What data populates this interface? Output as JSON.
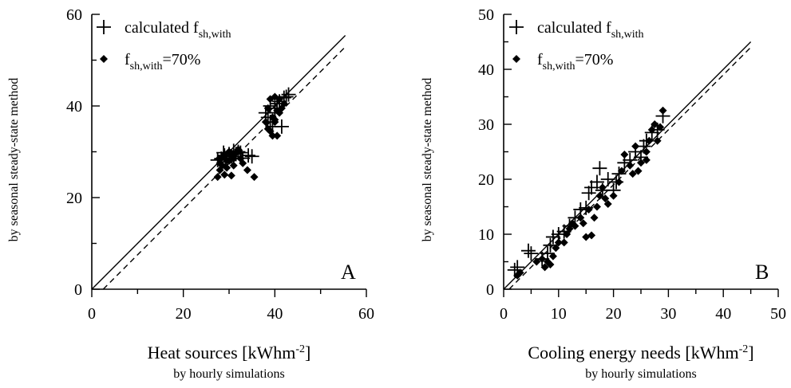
{
  "chart_data": [
    {
      "type": "scatter",
      "panel_label": "A",
      "xlabel": "Heat sources [kWhm",
      "xlabel_sup": "-2",
      "xlabel_close": "]",
      "xlabel_sub": "by hourly simulations",
      "ylabel": "by seasonal steady-state method",
      "xlim": [
        0,
        60
      ],
      "ylim": [
        0,
        60
      ],
      "xticks": [
        0,
        20,
        40,
        60
      ],
      "yticks": [
        0,
        20,
        40,
        60
      ],
      "grid": false,
      "legend_position": "top-left",
      "legend": {
        "calc_base": "calculated f",
        "calc_sub": "sh,with",
        "seventy_base": "f",
        "seventy_sub": "sh,with",
        "seventy_suffix": "=70%"
      },
      "lines": [
        {
          "style": "solid",
          "x": [
            0,
            55.4
          ],
          "y": [
            0,
            55.4
          ]
        },
        {
          "style": "dashed",
          "x": [
            2.5,
            55.4
          ],
          "y": [
            0,
            52.9
          ]
        }
      ],
      "series": [
        {
          "marker": "plus",
          "points": [
            [
              27.5,
              28.2
            ],
            [
              28.3,
              28.5
            ],
            [
              29,
              29.2
            ],
            [
              29.5,
              28.4
            ],
            [
              30,
              29.5
            ],
            [
              30.5,
              29
            ],
            [
              31,
              30.2
            ],
            [
              31.5,
              29.5
            ],
            [
              32,
              30
            ],
            [
              32.5,
              29.8
            ],
            [
              33,
              28.6
            ],
            [
              29.2,
              27.8
            ],
            [
              28.8,
              29.8
            ],
            [
              34.2,
              29.2
            ],
            [
              35,
              29
            ],
            [
              38,
              38.5
            ],
            [
              38.5,
              37.5
            ],
            [
              39,
              36.5
            ],
            [
              39.5,
              35.5
            ],
            [
              40,
              39.5
            ],
            [
              40.5,
              40.5
            ],
            [
              41,
              41
            ],
            [
              41.5,
              35.5
            ],
            [
              42,
              41.8
            ],
            [
              42.5,
              42
            ],
            [
              43,
              42.5
            ],
            [
              40,
              38.5
            ],
            [
              39,
              40
            ]
          ]
        },
        {
          "marker": "diamond",
          "points": [
            [
              27.5,
              24.5
            ],
            [
              28,
              26
            ],
            [
              28.5,
              27
            ],
            [
              29,
              25
            ],
            [
              29.5,
              26.5
            ],
            [
              30,
              28
            ],
            [
              30.5,
              24.8
            ],
            [
              31,
              27
            ],
            [
              28.5,
              28.8
            ],
            [
              29,
              29.5
            ],
            [
              30,
              30
            ],
            [
              31.5,
              29.8
            ],
            [
              32,
              30.5
            ],
            [
              32.5,
              28.5
            ],
            [
              33,
              27.5
            ],
            [
              34,
              26
            ],
            [
              35.5,
              24.5
            ],
            [
              29.5,
              28.2
            ],
            [
              30.5,
              29.2
            ],
            [
              31,
              28.5
            ],
            [
              28,
              27.5
            ],
            [
              27.8,
              28.5
            ],
            [
              38,
              36.5
            ],
            [
              38.5,
              35
            ],
            [
              39,
              34.5
            ],
            [
              39.5,
              33.5
            ],
            [
              40,
              37
            ],
            [
              40.5,
              33.5
            ],
            [
              41,
              38.5
            ],
            [
              39,
              41.5
            ],
            [
              40,
              42
            ],
            [
              41,
              41.5
            ],
            [
              42,
              40.5
            ],
            [
              41.5,
              39.5
            ],
            [
              38.5,
              39.5
            ],
            [
              40.5,
              39
            ],
            [
              39.5,
              37.5
            ],
            [
              40,
              36.5
            ]
          ]
        }
      ]
    },
    {
      "type": "scatter",
      "panel_label": "B",
      "xlabel": "Cooling energy needs [kWhm",
      "xlabel_sup": "-2",
      "xlabel_close": "]",
      "xlabel_sub": "by hourly simulations",
      "ylabel": "by seasonal steady-state method",
      "xlim": [
        0,
        50
      ],
      "ylim": [
        0,
        50
      ],
      "xticks": [
        0,
        10,
        20,
        30,
        40,
        50
      ],
      "yticks": [
        0,
        10,
        20,
        30,
        40,
        50
      ],
      "grid": false,
      "legend_position": "top-left",
      "legend": {
        "calc_base": "calculated f",
        "calc_sub": "sh,with",
        "seventy_base": "f",
        "seventy_sub": "sh,with",
        "seventy_suffix": "=70%"
      },
      "lines": [
        {
          "style": "solid",
          "x": [
            0,
            45
          ],
          "y": [
            0,
            45
          ]
        },
        {
          "style": "dashed",
          "x": [
            1,
            45.3
          ],
          "y": [
            0,
            44.3
          ]
        }
      ],
      "series": [
        {
          "marker": "plus",
          "points": [
            [
              2,
              3.5
            ],
            [
              2.5,
              4
            ],
            [
              4.5,
              7
            ],
            [
              5,
              6.5
            ],
            [
              7,
              5.5
            ],
            [
              8,
              6.5
            ],
            [
              8.5,
              8
            ],
            [
              9,
              9.5
            ],
            [
              10,
              10
            ],
            [
              11,
              10.5
            ],
            [
              12,
              11.5
            ],
            [
              13,
              13
            ],
            [
              14,
              14.5
            ],
            [
              15,
              14.8
            ],
            [
              15.5,
              17.5
            ],
            [
              16,
              18.5
            ],
            [
              17,
              19.5
            ],
            [
              17.5,
              22
            ],
            [
              18,
              18
            ],
            [
              19,
              20
            ],
            [
              20,
              18
            ],
            [
              20.5,
              19.5
            ],
            [
              21,
              21
            ],
            [
              22,
              23
            ],
            [
              23,
              23.5
            ],
            [
              24,
              25
            ],
            [
              25,
              24
            ],
            [
              26,
              27
            ],
            [
              27,
              28.5
            ],
            [
              28,
              29
            ],
            [
              29,
              31.5
            ],
            [
              25.5,
              26
            ]
          ]
        },
        {
          "marker": "diamond",
          "points": [
            [
              2.5,
              2.5
            ],
            [
              3,
              3
            ],
            [
              6,
              5
            ],
            [
              7,
              5.5
            ],
            [
              7.5,
              4
            ],
            [
              8,
              5
            ],
            [
              8.5,
              4.5
            ],
            [
              9,
              6
            ],
            [
              9.5,
              7.5
            ],
            [
              10,
              8.5
            ],
            [
              11,
              8.5
            ],
            [
              11.5,
              10
            ],
            [
              12,
              11
            ],
            [
              12.5,
              12
            ],
            [
              13,
              11.5
            ],
            [
              14,
              13
            ],
            [
              14.5,
              12
            ],
            [
              15,
              9.5
            ],
            [
              15.5,
              14.5
            ],
            [
              16,
              9.8
            ],
            [
              16.5,
              13
            ],
            [
              17,
              15
            ],
            [
              17.5,
              17
            ],
            [
              18,
              18.5
            ],
            [
              18.5,
              16.5
            ],
            [
              19,
              15.5
            ],
            [
              20,
              17
            ],
            [
              21,
              19.5
            ],
            [
              21.5,
              21.5
            ],
            [
              22,
              24.5
            ],
            [
              23,
              22.5
            ],
            [
              23.5,
              21
            ],
            [
              24,
              26
            ],
            [
              24.5,
              21.5
            ],
            [
              25,
              23
            ],
            [
              26,
              25
            ],
            [
              26.5,
              27
            ],
            [
              27,
              29
            ],
            [
              27.5,
              30
            ],
            [
              28,
              27
            ],
            [
              28.5,
              29.5
            ],
            [
              29,
              32.5
            ],
            [
              26,
              23.5
            ]
          ]
        }
      ]
    }
  ]
}
